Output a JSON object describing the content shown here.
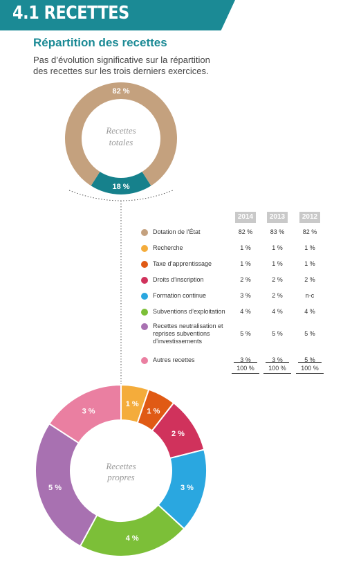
{
  "header": {
    "title": "4.1 RECETTES",
    "color": "#1b8a95"
  },
  "section": {
    "title": "Répartition des recettes"
  },
  "intro_text": "Pas d’évolution significative sur la répartition des recettes sur les trois derniers exercices.",
  "top_chart": {
    "center_line1": "Recettes",
    "center_line2": "totales"
  },
  "bottom_chart": {
    "center_line1": "Recettes",
    "center_line2": "propres"
  },
  "table": {
    "years": [
      "2014",
      "2013",
      "2012"
    ],
    "rows": [
      {
        "label": "Dotation de l’État",
        "color": "#c4a17e",
        "values": [
          "82 %",
          "83 %",
          "82 %"
        ]
      },
      {
        "label": "Recherche",
        "color": "#f4ac3b",
        "values": [
          "1 %",
          "1 %",
          "1 %"
        ]
      },
      {
        "label": "Taxe d’apprentissage",
        "color": "#e05a14",
        "values": [
          "1 %",
          "1 %",
          "1 %"
        ]
      },
      {
        "label": "Droits d’inscription",
        "color": "#d0325c",
        "values": [
          "2 %",
          "2 %",
          "2 %"
        ]
      },
      {
        "label": "Formation continue",
        "color": "#2aa7e0",
        "values": [
          "3 %",
          "2 %",
          "n-c"
        ]
      },
      {
        "label": "Subventions d’exploitation",
        "color": "#7cbf38",
        "values": [
          "4 %",
          "4 %",
          "4 %"
        ]
      },
      {
        "label": "Recettes neutralisation et reprises subventions d’investissements",
        "color": "#a871b1",
        "values": [
          "5 %",
          "5 %",
          "5 %"
        ]
      },
      {
        "label": "Autres recettes",
        "color": "#ea7fa1",
        "values": [
          "3 %",
          "3 %",
          "5 %"
        ]
      }
    ],
    "totals": [
      "100 %",
      "100 %",
      "100 %"
    ]
  },
  "chart_data": [
    {
      "type": "pie",
      "categories": [
        "Recettes propres",
        "Dotation de l’État"
      ],
      "values": [
        18,
        82
      ],
      "labels": [
        "18 %",
        "82 %"
      ],
      "colors": [
        "#16818c",
        "#c4a17e"
      ]
    },
    {
      "type": "pie",
      "categories": [
        "Recherche",
        "Taxe d’apprentissage",
        "Droits d’inscription",
        "Formation continue",
        "Subventions d’exploitation",
        "Recettes neutralisation et reprises subventions d’investissements",
        "Autres recettes"
      ],
      "values": [
        1,
        1,
        2,
        3,
        4,
        5,
        3
      ],
      "labels": [
        "1 %",
        "1 %",
        "2 %",
        "3 %",
        "4 %",
        "5 %",
        "3 %"
      ],
      "colors": [
        "#f4ac3b",
        "#e05a14",
        "#d0325c",
        "#2aa7e0",
        "#7cbf38",
        "#a871b1",
        "#ea7fa1"
      ]
    }
  ]
}
